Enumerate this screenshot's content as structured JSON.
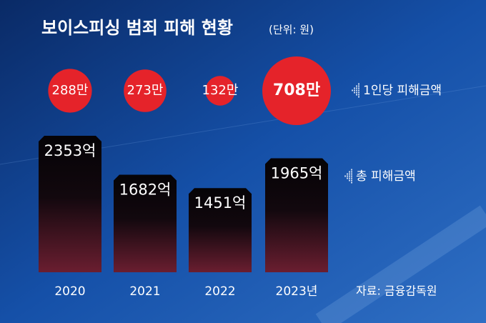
{
  "chart_data": {
    "type": "bar",
    "title": "보이스피싱 범죄 피해 현황",
    "subtitle": "(단위: 원)",
    "categories": [
      "2020",
      "2021",
      "2022",
      "2023년"
    ],
    "series": [
      {
        "name": "1인당 피해금액",
        "type": "bubble",
        "color": "#e5232a",
        "values": [
          288,
          273,
          132,
          708
        ],
        "value_labels": [
          "288만",
          "273만",
          "132만",
          "708만"
        ]
      },
      {
        "name": "총 피해금액",
        "type": "bar",
        "color": "#5a1a2a",
        "values": [
          2353,
          1682,
          1451,
          1965
        ],
        "value_labels": [
          "2353억",
          "1682억",
          "1451억",
          "1965억"
        ]
      }
    ],
    "source": "자료: 금융감독원"
  }
}
